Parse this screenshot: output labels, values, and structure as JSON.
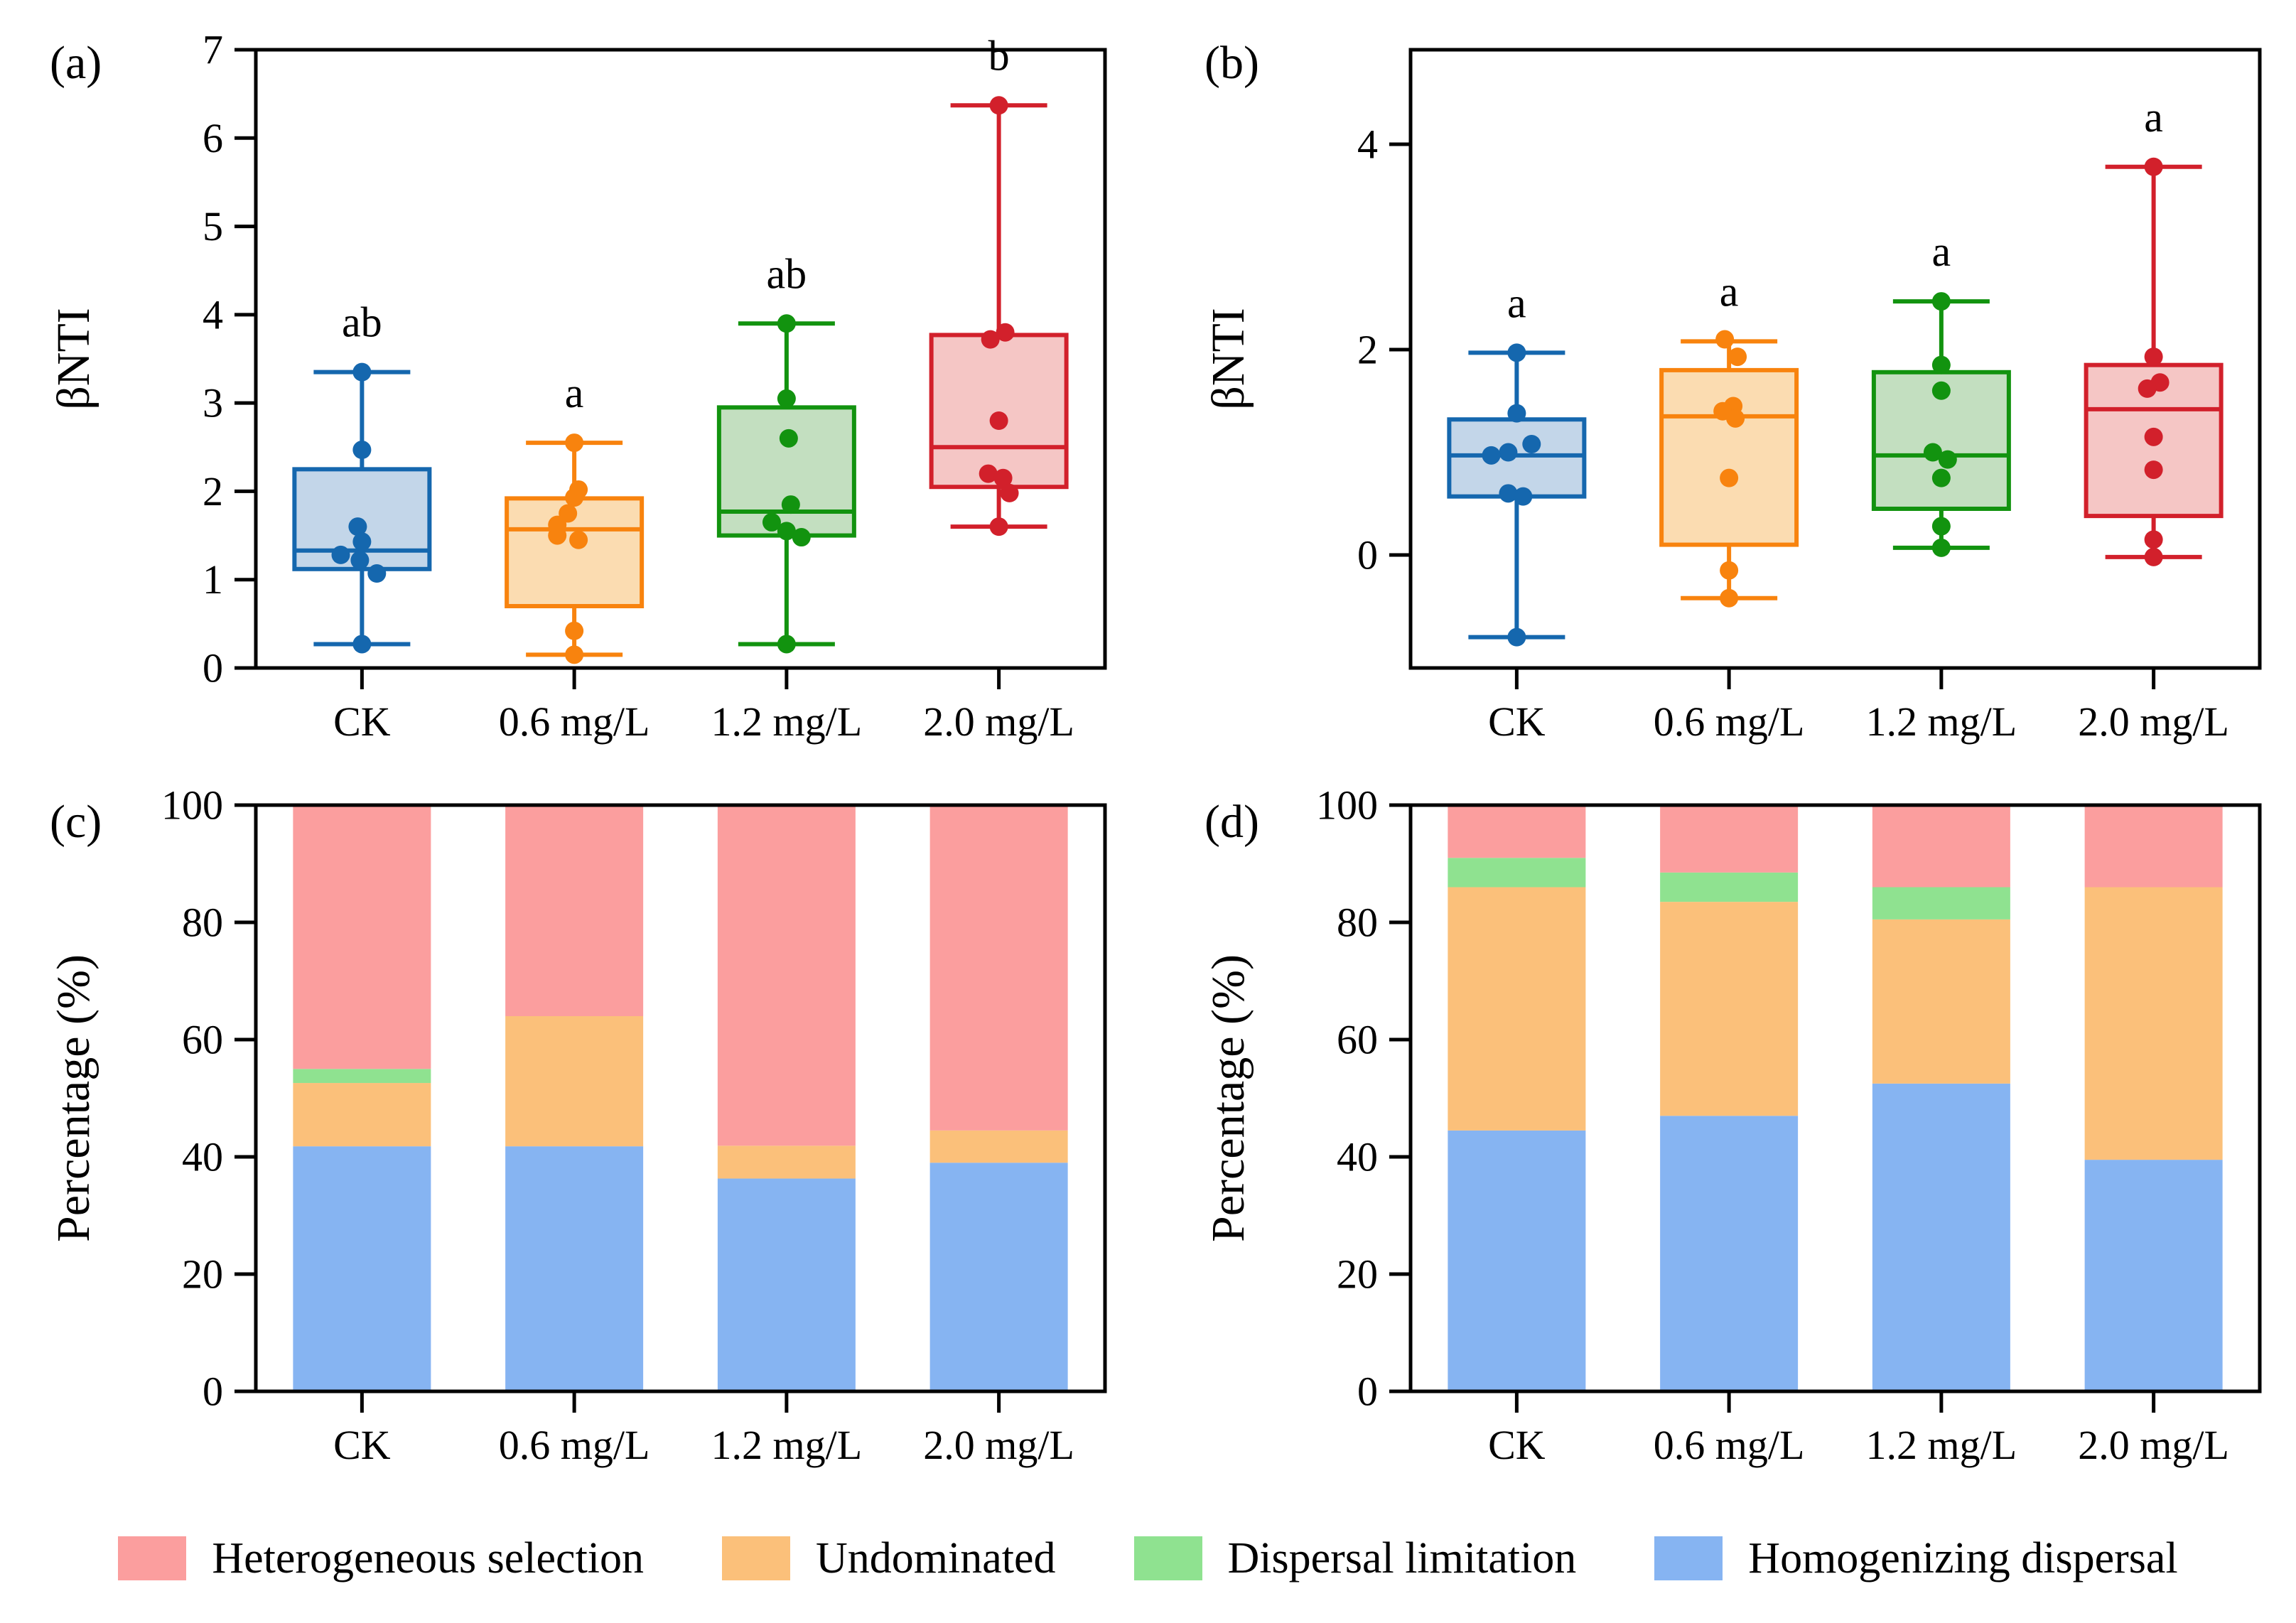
{
  "page": {
    "background": "#ffffff"
  },
  "legend": {
    "items": [
      {
        "label": "Heterogeneous selection",
        "color": "#FB9E9E"
      },
      {
        "label": "Undominated",
        "color": "#FBC07A"
      },
      {
        "label": "Dispersal limitation",
        "color": "#8FE290"
      },
      {
        "label": "Homogenizing dispersal",
        "color": "#86B4F2"
      }
    ]
  },
  "chart_data": [
    {
      "id": "a",
      "type": "box",
      "panel_letter": "(a)",
      "ylabel": "βNTI",
      "ylim": [
        0,
        7
      ],
      "yticks": [
        0,
        1,
        2,
        3,
        4,
        5,
        6,
        7
      ],
      "categories": [
        "CK",
        "0.6 mg/L",
        "1.2 mg/L",
        "2.0 mg/L"
      ],
      "groups": [
        {
          "category": "CK",
          "sig": "ab",
          "stroke": "#1567AE",
          "fill": "#C3D6E9",
          "whislo": 0.27,
          "q1": 1.12,
          "med": 1.33,
          "q3": 2.25,
          "whishi": 3.35,
          "points": [
            [
              3.35,
              0
            ],
            [
              2.47,
              0
            ],
            [
              1.6,
              -0.02
            ],
            [
              1.43,
              0
            ],
            [
              1.28,
              -0.1
            ],
            [
              1.22,
              -0.01
            ],
            [
              1.07,
              0.07
            ],
            [
              0.27,
              0
            ]
          ]
        },
        {
          "category": "0.6 mg/L",
          "sig": "a",
          "stroke": "#F8830E",
          "fill": "#FBDCB1",
          "whislo": 0.15,
          "q1": 0.7,
          "med": 1.57,
          "q3": 1.92,
          "whishi": 2.55,
          "points": [
            [
              2.55,
              0
            ],
            [
              2.02,
              0.02
            ],
            [
              1.93,
              0
            ],
            [
              1.75,
              -0.03
            ],
            [
              1.62,
              -0.08
            ],
            [
              1.5,
              -0.08
            ],
            [
              1.45,
              0.02
            ],
            [
              0.42,
              0
            ],
            [
              0.15,
              0
            ]
          ]
        },
        {
          "category": "1.2 mg/L",
          "sig": "ab",
          "stroke": "#12930F",
          "fill": "#C3DFC0",
          "whislo": 0.27,
          "q1": 1.5,
          "med": 1.77,
          "q3": 2.95,
          "whishi": 3.9,
          "points": [
            [
              3.9,
              0
            ],
            [
              3.05,
              0
            ],
            [
              2.6,
              0.01
            ],
            [
              1.85,
              0.02
            ],
            [
              1.65,
              -0.07
            ],
            [
              1.55,
              0
            ],
            [
              1.48,
              0.07
            ],
            [
              0.27,
              0
            ]
          ]
        },
        {
          "category": "2.0 mg/L",
          "sig": "b",
          "stroke": "#D2202B",
          "fill": "#F5C6C5",
          "whislo": 1.6,
          "q1": 2.05,
          "med": 2.5,
          "q3": 3.77,
          "whishi": 6.37,
          "points": [
            [
              6.37,
              0
            ],
            [
              3.8,
              0.03
            ],
            [
              3.72,
              -0.04
            ],
            [
              2.8,
              0
            ],
            [
              2.2,
              -0.05
            ],
            [
              2.15,
              0.02
            ],
            [
              1.98,
              0.05
            ],
            [
              1.6,
              0
            ]
          ]
        }
      ]
    },
    {
      "id": "b",
      "type": "box",
      "panel_letter": "(b)",
      "ylabel": "βNTI",
      "ylim": [
        -1.1,
        4.92
      ],
      "yticks": [
        0,
        2,
        4
      ],
      "categories": [
        "CK",
        "0.6 mg/L",
        "1.2 mg/L",
        "2.0 mg/L"
      ],
      "groups": [
        {
          "category": "CK",
          "sig": "a",
          "stroke": "#1567AE",
          "fill": "#C3D6E9",
          "whislo": -0.8,
          "q1": 0.57,
          "med": 0.97,
          "q3": 1.32,
          "whishi": 1.97,
          "points": [
            [
              1.97,
              0
            ],
            [
              1.38,
              0
            ],
            [
              1.08,
              0.07
            ],
            [
              1.0,
              -0.04
            ],
            [
              0.97,
              -0.12
            ],
            [
              0.6,
              -0.04
            ],
            [
              0.57,
              0.03
            ],
            [
              -0.8,
              0
            ]
          ]
        },
        {
          "category": "0.6 mg/L",
          "sig": "a",
          "stroke": "#F8830E",
          "fill": "#FBDCB1",
          "whislo": -0.42,
          "q1": 0.1,
          "med": 1.35,
          "q3": 1.8,
          "whishi": 2.08,
          "points": [
            [
              2.1,
              -0.02
            ],
            [
              1.93,
              0.04
            ],
            [
              1.45,
              0.02
            ],
            [
              1.4,
              -0.03
            ],
            [
              1.33,
              0.03
            ],
            [
              0.75,
              0
            ],
            [
              -0.15,
              0
            ],
            [
              -0.42,
              0
            ]
          ]
        },
        {
          "category": "1.2 mg/L",
          "sig": "a",
          "stroke": "#12930F",
          "fill": "#C3DFC0",
          "whislo": 0.07,
          "q1": 0.45,
          "med": 0.97,
          "q3": 1.78,
          "whishi": 2.47,
          "points": [
            [
              2.47,
              0
            ],
            [
              1.85,
              0
            ],
            [
              1.6,
              0
            ],
            [
              1.0,
              -0.04
            ],
            [
              0.93,
              0.03
            ],
            [
              0.75,
              0
            ],
            [
              0.28,
              0
            ],
            [
              0.07,
              0
            ]
          ]
        },
        {
          "category": "2.0 mg/L",
          "sig": "a",
          "stroke": "#D2202B",
          "fill": "#F5C6C5",
          "whislo": -0.02,
          "q1": 0.38,
          "med": 1.42,
          "q3": 1.85,
          "whishi": 3.78,
          "points": [
            [
              3.78,
              0
            ],
            [
              1.93,
              0
            ],
            [
              1.68,
              0.03
            ],
            [
              1.62,
              -0.03
            ],
            [
              1.15,
              0
            ],
            [
              0.83,
              0
            ],
            [
              0.15,
              0
            ],
            [
              -0.02,
              0
            ]
          ]
        }
      ]
    },
    {
      "id": "c",
      "type": "stacked-bar",
      "panel_letter": "(c)",
      "ylabel": "Percentage (%)",
      "ylim": [
        0,
        100
      ],
      "yticks": [
        0,
        20,
        40,
        60,
        80,
        100
      ],
      "categories": [
        "CK",
        "0.6 mg/L",
        "1.2 mg/L",
        "2.0 mg/L"
      ],
      "series": [
        {
          "name": "Homogenizing dispersal",
          "color": "#86B4F2",
          "values": [
            41.8,
            41.8,
            36.3,
            39.0
          ]
        },
        {
          "name": "Undominated",
          "color": "#FBC07A",
          "values": [
            10.8,
            22.2,
            5.6,
            5.5
          ]
        },
        {
          "name": "Dispersal limitation",
          "color": "#8FE290",
          "values": [
            2.4,
            0,
            0,
            0
          ]
        },
        {
          "name": "Heterogeneous selection",
          "color": "#FB9E9E",
          "values": [
            45.0,
            36.0,
            58.1,
            55.5
          ]
        }
      ]
    },
    {
      "id": "d",
      "type": "stacked-bar",
      "panel_letter": "(d)",
      "ylabel": "Percentage (%)",
      "ylim": [
        0,
        100
      ],
      "yticks": [
        0,
        20,
        40,
        60,
        80,
        100
      ],
      "categories": [
        "CK",
        "0.6 mg/L",
        "1.2 mg/L",
        "2.0 mg/L"
      ],
      "series": [
        {
          "name": "Homogenizing dispersal",
          "color": "#86B4F2",
          "values": [
            44.5,
            47.0,
            52.5,
            39.5
          ]
        },
        {
          "name": "Undominated",
          "color": "#FBC07A",
          "values": [
            41.5,
            36.5,
            28.0,
            46.5
          ]
        },
        {
          "name": "Dispersal limitation",
          "color": "#8FE290",
          "values": [
            5.0,
            5.0,
            5.5,
            0
          ]
        },
        {
          "name": "Heterogeneous selection",
          "color": "#FB9E9E",
          "values": [
            9.0,
            11.5,
            14.0,
            14.0
          ]
        }
      ]
    }
  ]
}
